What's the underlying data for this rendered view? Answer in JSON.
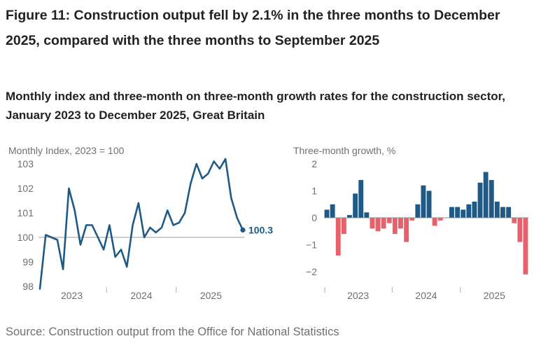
{
  "title": "Figure 11: Construction output fell by 2.1% in the three months to December 2025, compared with the three months to September 2025",
  "subtitle": "Monthly index and three-month on three-month growth rates for the construction sector, January 2023 to December 2025, Great Britain",
  "source": "Source: Construction output from the Office for National Statistics",
  "colors": {
    "line": "#1f5a87",
    "positive": "#1f5a87",
    "negative": "#e8606c",
    "grid": "#b0b0b0",
    "text_muted": "#707070"
  },
  "chart_data": [
    {
      "type": "line",
      "ylabel": "Monthly Index, 2023 = 100",
      "ylim": [
        98,
        103
      ],
      "yticks": [
        "98",
        "99",
        "100",
        "101",
        "102",
        "103"
      ],
      "xticks": [
        "2023",
        "2024",
        "2025"
      ],
      "reference_line": 100,
      "end_label": "100.3",
      "x": [
        "2023-01",
        "2023-02",
        "2023-03",
        "2023-04",
        "2023-05",
        "2023-06",
        "2023-07",
        "2023-08",
        "2023-09",
        "2023-10",
        "2023-11",
        "2023-12",
        "2024-01",
        "2024-02",
        "2024-03",
        "2024-04",
        "2024-05",
        "2024-06",
        "2024-07",
        "2024-08",
        "2024-09",
        "2024-10",
        "2024-11",
        "2024-12",
        "2025-01",
        "2025-02",
        "2025-03",
        "2025-04",
        "2025-05",
        "2025-06",
        "2025-07",
        "2025-08",
        "2025-09",
        "2025-10",
        "2025-11",
        "2025-12"
      ],
      "values": [
        97.9,
        100.1,
        100.0,
        99.9,
        98.7,
        102.0,
        101.1,
        99.7,
        100.5,
        100.5,
        100.0,
        99.5,
        100.5,
        99.2,
        99.5,
        98.8,
        100.5,
        101.4,
        100.0,
        100.4,
        100.2,
        100.4,
        101.1,
        100.5,
        100.6,
        101.0,
        102.2,
        103.0,
        102.4,
        102.6,
        103.1,
        102.8,
        103.2,
        101.6,
        100.8,
        100.3
      ]
    },
    {
      "type": "bar",
      "ylabel": "Three-month growth, %",
      "ylim": [
        -2.3,
        2.1
      ],
      "yticks": [
        "−2",
        "−1",
        "0",
        "1",
        "2"
      ],
      "xticks": [
        "2023",
        "2024",
        "2025"
      ],
      "categories": [
        "2023-01",
        "2023-02",
        "2023-03",
        "2023-04",
        "2023-05",
        "2023-06",
        "2023-07",
        "2023-08",
        "2023-09",
        "2023-10",
        "2023-11",
        "2023-12",
        "2024-01",
        "2024-02",
        "2024-03",
        "2024-04",
        "2024-05",
        "2024-06",
        "2024-07",
        "2024-08",
        "2024-09",
        "2024-10",
        "2024-11",
        "2024-12",
        "2025-01",
        "2025-02",
        "2025-03",
        "2025-04",
        "2025-05",
        "2025-06",
        "2025-07",
        "2025-08",
        "2025-09",
        "2025-10",
        "2025-11",
        "2025-12"
      ],
      "values": [
        0.3,
        0.5,
        -1.4,
        -0.6,
        0.1,
        0.9,
        1.4,
        0.2,
        -0.4,
        -0.5,
        -0.4,
        -0.2,
        -0.6,
        -0.4,
        -0.9,
        -0.1,
        0.5,
        1.2,
        1.0,
        -0.3,
        -0.1,
        0.0,
        0.4,
        0.4,
        0.3,
        0.5,
        0.6,
        1.3,
        1.7,
        1.4,
        0.6,
        0.4,
        0.4,
        -0.2,
        -0.9,
        -2.1
      ]
    }
  ]
}
